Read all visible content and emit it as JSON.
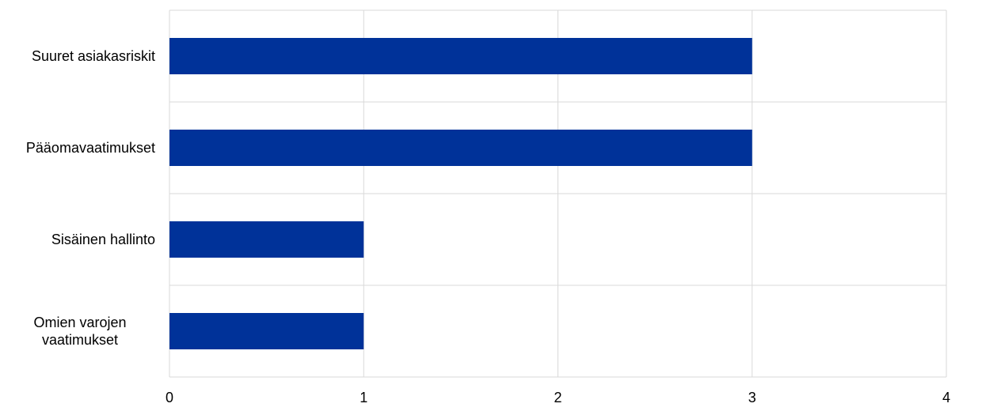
{
  "chart_data": {
    "type": "bar",
    "orientation": "horizontal",
    "categories": [
      "Suuret asiakasriskit",
      "Pääomavaatimukset",
      "Sisäinen hallinto",
      "Omien varojen vaatimukset"
    ],
    "values": [
      3,
      3,
      1,
      1
    ],
    "color": "#003299",
    "xlim": [
      0,
      4
    ],
    "xticks": [
      0,
      1,
      2,
      3,
      4
    ],
    "grid": true
  }
}
